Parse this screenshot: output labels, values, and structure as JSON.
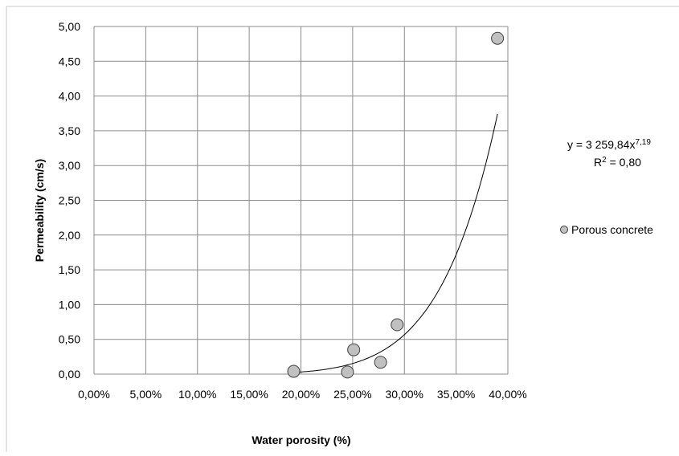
{
  "chart_data": {
    "type": "scatter",
    "title": "",
    "xlabel": "Water porosity (%)",
    "ylabel": "Permeability (cm/s)",
    "xlim": [
      0.0,
      0.4
    ],
    "ylim": [
      0.0,
      5.0
    ],
    "x_ticks": [
      0.0,
      0.05,
      0.1,
      0.15,
      0.2,
      0.25,
      0.3,
      0.35,
      0.4
    ],
    "x_tick_labels": [
      "0,00%",
      "5,00%",
      "10,00%",
      "15,00%",
      "20,00%",
      "25,00%",
      "30,00%",
      "35,00%",
      "40,00%"
    ],
    "y_ticks": [
      0.0,
      0.5,
      1.0,
      1.5,
      2.0,
      2.5,
      3.0,
      3.5,
      4.0,
      4.5,
      5.0
    ],
    "y_tick_labels": [
      "0,00",
      "0,50",
      "1,00",
      "1,50",
      "2,00",
      "2,50",
      "3,00",
      "3,50",
      "4,00",
      "4,50",
      "5,00"
    ],
    "grid": true,
    "legend_position": "right",
    "series": [
      {
        "name": "Porous concrete",
        "color": "#c0c0c0",
        "edge_color": "#404040",
        "points": [
          {
            "x": 0.193,
            "y": 0.04
          },
          {
            "x": 0.245,
            "y": 0.03
          },
          {
            "x": 0.251,
            "y": 0.35
          },
          {
            "x": 0.277,
            "y": 0.17
          },
          {
            "x": 0.293,
            "y": 0.71
          },
          {
            "x": 0.39,
            "y": 4.83
          }
        ]
      }
    ],
    "trendline": {
      "type": "power",
      "coefficient": 3259.84,
      "exponent": 7.19,
      "x_range": [
        0.193,
        0.39
      ],
      "equation_text": "y = 3 259,84x",
      "exponent_text": "7,19",
      "r2_text_prefix": "R",
      "r2_text_power": "2",
      "r2_text_value": " = 0,80"
    }
  }
}
